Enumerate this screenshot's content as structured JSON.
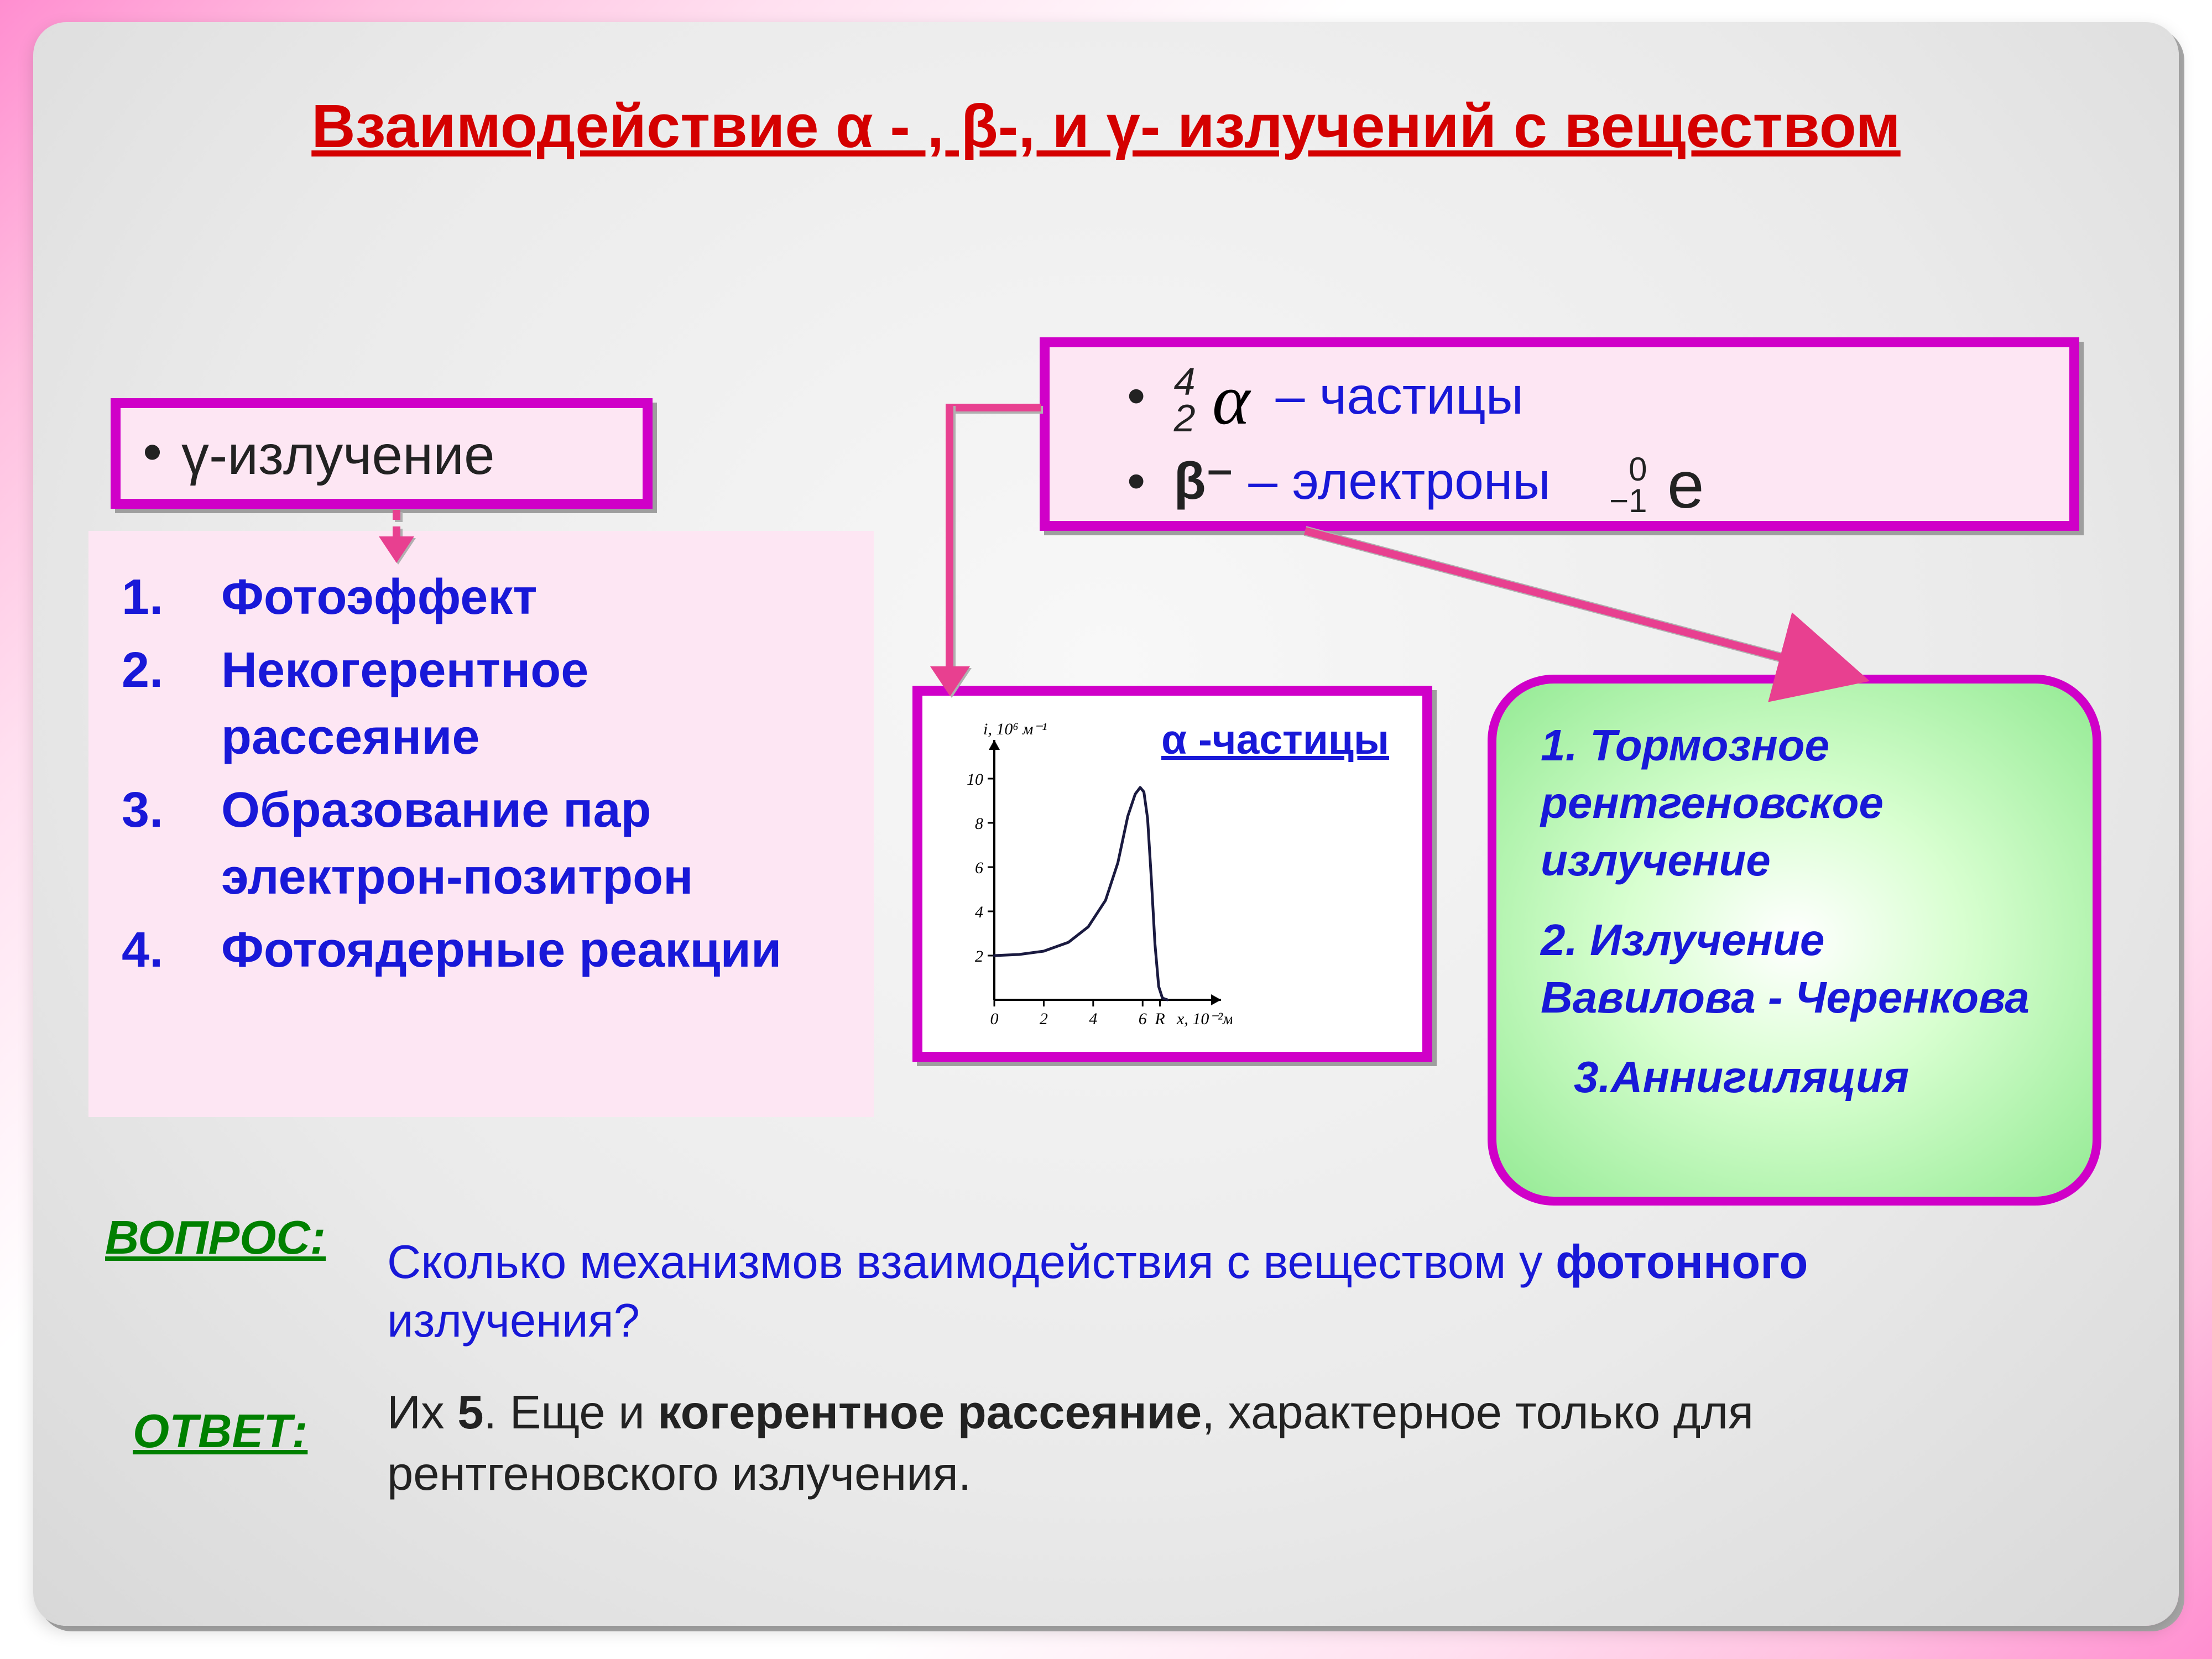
{
  "title": "Взаимодействие α - , β-,  и  γ- излучений с веществом",
  "gammaBox": "γ-излучение",
  "particles": {
    "alphaTop": "4",
    "alphaBottom": "2",
    "alphaSym": "α",
    "alphaText": " – частицы",
    "betaLabel": "β⁻",
    "betaText": " – электроны",
    "eTop": "0",
    "eBottom": "−1",
    "eSym": "e"
  },
  "gammaList": [
    "Фотоэффект",
    "Некогерентное рассеяние",
    "Образование пар электрон-позитрон",
    "Фотоядерные реакции"
  ],
  "chart": {
    "title": "α -частицы",
    "yLabel": "i, 10⁶ м⁻¹",
    "xLabel": "x, 10⁻²м",
    "xTicks": [
      "0",
      "2",
      "4",
      "6",
      "R"
    ],
    "yTicks": [
      "2",
      "4",
      "6",
      "8",
      "10"
    ],
    "xlim": [
      0,
      8.5
    ],
    "ylim": [
      0,
      11
    ],
    "curve": [
      [
        0,
        2.0
      ],
      [
        1.0,
        2.05
      ],
      [
        2.0,
        2.2
      ],
      [
        3.0,
        2.6
      ],
      [
        3.8,
        3.3
      ],
      [
        4.5,
        4.5
      ],
      [
        5.0,
        6.2
      ],
      [
        5.4,
        8.3
      ],
      [
        5.7,
        9.3
      ],
      [
        5.9,
        9.6
      ],
      [
        6.05,
        9.4
      ],
      [
        6.2,
        8.2
      ],
      [
        6.35,
        5.5
      ],
      [
        6.5,
        2.5
      ],
      [
        6.65,
        0.6
      ],
      [
        6.8,
        0.08
      ],
      [
        7.0,
        0.0
      ]
    ],
    "lineColor": "#1a1a40",
    "axisColor": "#000000",
    "tickFont": 30
  },
  "betaList": [
    "Тормозное рентгеновское излучение",
    " Излучение Вавилова - Черенкова",
    "Аннигиляция"
  ],
  "questionLabel": "ВОПРОС:",
  "questionTextPre": "Сколько механизмов взаимодействия  с веществом у ",
  "questionBold": "фотонного",
  "questionTextPost": " излучения?",
  "answerLabel": "ОТВЕТ:",
  "answerPre": "Их ",
  "answerFive": "5",
  "answerMid": ". Еще и ",
  "answerBold": "когерентное рассеяние",
  "answerPost": ", характерное только для рентгеновского излучения.",
  "colors": {
    "titleRed": "#d40000",
    "magenta": "#d000c8",
    "pinkFill": "#fde6f3",
    "blue": "#1818d8",
    "green": "#008000",
    "arrow": "#e84090"
  }
}
